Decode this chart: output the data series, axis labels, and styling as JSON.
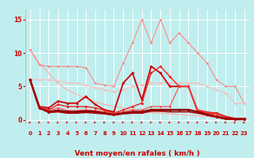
{
  "bg_color": "#c0eeee",
  "grid_color": "#ffffff",
  "xlabel": "Vent moyen/en rafales ( km/h )",
  "xlabel_color": "#cc0000",
  "xlabel_fontsize": 6.5,
  "xtick_vals": [
    0,
    1,
    2,
    3,
    4,
    5,
    6,
    7,
    8,
    9,
    10,
    11,
    12,
    13,
    14,
    15,
    16,
    17,
    18,
    19,
    20,
    21,
    22,
    23
  ],
  "ytick_vals": [
    0,
    5,
    10,
    15
  ],
  "ylim": [
    -0.5,
    16.5
  ],
  "xlim": [
    -0.5,
    23.5
  ],
  "series": [
    {
      "x": [
        0,
        1,
        2,
        3,
        4,
        5,
        6,
        7,
        8,
        9,
        10,
        11,
        12,
        13,
        14,
        15,
        16,
        17,
        18,
        19,
        20,
        21,
        22,
        23
      ],
      "y": [
        10.5,
        8.5,
        7.0,
        5.5,
        4.5,
        3.8,
        3.2,
        2.7,
        2.3,
        2.0,
        1.8,
        1.5,
        1.3,
        1.1,
        1.0,
        0.9,
        0.8,
        0.7,
        0.6,
        0.5,
        0.4,
        0.3,
        0.2,
        0.2
      ],
      "color": "#ffaaaa",
      "lw": 0.8,
      "marker": null
    },
    {
      "x": [
        0,
        1,
        2,
        3,
        4,
        5,
        6,
        7,
        8,
        9,
        10,
        11,
        12,
        13,
        14,
        15,
        16,
        17,
        18,
        19,
        20,
        21,
        22,
        23
      ],
      "y": [
        10.5,
        8.2,
        8.0,
        8.0,
        8.0,
        8.0,
        7.8,
        5.5,
        5.2,
        5.0,
        8.5,
        11.5,
        15.0,
        11.5,
        15.0,
        11.5,
        13.0,
        11.5,
        10.0,
        8.5,
        6.0,
        5.0,
        5.0,
        2.5
      ],
      "color": "#ff8888",
      "lw": 0.8,
      "marker": "D",
      "ms": 1.8
    },
    {
      "x": [
        0,
        1,
        2,
        3,
        4,
        5,
        6,
        7,
        8,
        9,
        10,
        11,
        12,
        13,
        14,
        15,
        16,
        17,
        18,
        19,
        20,
        21,
        22,
        23
      ],
      "y": [
        6.0,
        6.0,
        6.0,
        5.8,
        5.5,
        5.5,
        5.2,
        4.8,
        4.5,
        4.2,
        4.5,
        5.0,
        5.2,
        5.5,
        5.5,
        5.5,
        5.5,
        5.5,
        5.5,
        5.0,
        4.5,
        4.0,
        2.5,
        2.5
      ],
      "color": "#ffbbbb",
      "lw": 0.8,
      "marker": "D",
      "ms": 1.8
    },
    {
      "x": [
        0,
        1,
        2,
        3,
        4,
        5,
        6,
        7,
        8,
        9,
        10,
        11,
        12,
        13,
        14,
        15,
        16,
        17,
        18,
        19,
        20,
        21,
        22,
        23
      ],
      "y": [
        6.0,
        2.0,
        1.8,
        2.8,
        2.5,
        2.5,
        3.5,
        2.3,
        1.5,
        1.2,
        5.5,
        7.0,
        3.0,
        8.0,
        7.0,
        5.0,
        5.0,
        5.0,
        1.3,
        1.0,
        1.0,
        0.5,
        0.2,
        0.2
      ],
      "color": "#cc0000",
      "lw": 1.3,
      "marker": "D",
      "ms": 2.0
    },
    {
      "x": [
        0,
        1,
        2,
        3,
        4,
        5,
        6,
        7,
        8,
        9,
        10,
        11,
        12,
        13,
        14,
        15,
        16,
        17,
        18,
        19,
        20,
        21,
        22,
        23
      ],
      "y": [
        6.0,
        2.0,
        1.5,
        2.3,
        2.0,
        2.0,
        2.0,
        1.8,
        1.4,
        1.0,
        1.5,
        2.0,
        2.5,
        7.0,
        8.0,
        6.5,
        5.0,
        5.0,
        1.5,
        1.2,
        1.0,
        0.5,
        0.2,
        0.2
      ],
      "color": "#ee2222",
      "lw": 1.0,
      "marker": "D",
      "ms": 2.0
    },
    {
      "x": [
        0,
        1,
        2,
        3,
        4,
        5,
        6,
        7,
        8,
        9,
        10,
        11,
        12,
        13,
        14,
        15,
        16,
        17,
        18,
        19,
        20,
        21,
        22,
        23
      ],
      "y": [
        6.0,
        2.0,
        1.4,
        1.8,
        1.4,
        1.4,
        1.5,
        1.4,
        1.2,
        1.0,
        1.2,
        1.5,
        1.5,
        2.0,
        2.0,
        2.0,
        5.0,
        5.0,
        1.5,
        1.0,
        0.8,
        0.3,
        0.1,
        0.1
      ],
      "color": "#ff4444",
      "lw": 0.8,
      "marker": "D",
      "ms": 1.6
    },
    {
      "x": [
        0,
        1,
        2,
        3,
        4,
        5,
        6,
        7,
        8,
        9,
        10,
        11,
        12,
        13,
        14,
        15,
        16,
        17,
        18,
        19,
        20,
        21,
        22,
        23
      ],
      "y": [
        6.0,
        1.8,
        1.2,
        1.4,
        1.2,
        1.2,
        1.3,
        1.2,
        1.0,
        0.8,
        1.0,
        1.2,
        1.2,
        1.5,
        1.5,
        1.5,
        1.5,
        1.5,
        1.2,
        0.8,
        0.5,
        0.2,
        0.1,
        0.1
      ],
      "color": "#880000",
      "lw": 1.8,
      "marker": "D",
      "ms": 2.0
    },
    {
      "x": [
        0,
        1,
        2,
        3,
        4,
        5,
        6,
        7,
        8,
        9,
        10,
        11,
        12,
        13,
        14,
        15,
        16,
        17,
        18,
        19,
        20,
        21,
        22,
        23
      ],
      "y": [
        6.0,
        1.8,
        1.1,
        1.2,
        1.0,
        1.0,
        1.1,
        1.0,
        0.9,
        0.7,
        0.9,
        1.0,
        1.0,
        1.3,
        1.3,
        1.2,
        1.2,
        1.2,
        1.0,
        0.7,
        0.4,
        0.1,
        0.05,
        0.05
      ],
      "color": "#aa0000",
      "lw": 1.1,
      "marker": null
    }
  ],
  "tick_color": "#cc0000",
  "tick_fontsize": 5.0,
  "arrow_color": "#cc0000"
}
